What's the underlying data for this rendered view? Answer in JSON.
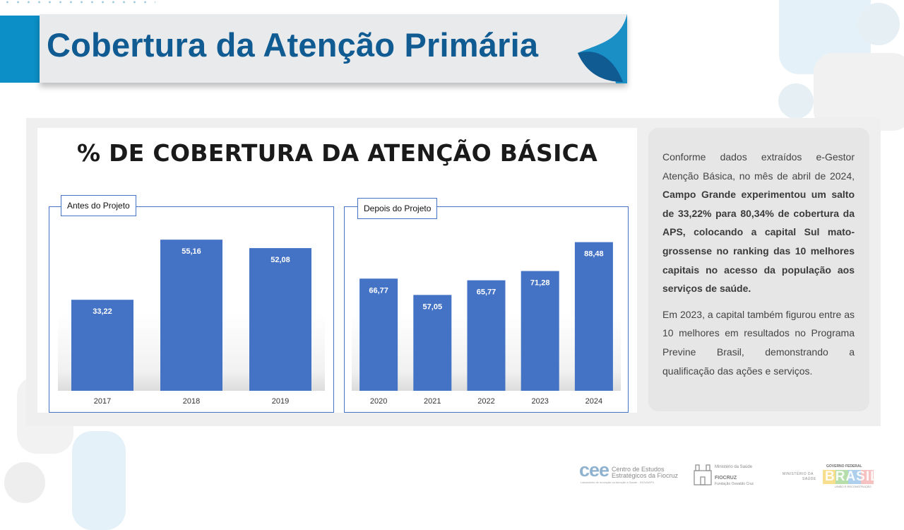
{
  "header": {
    "title": "Cobertura da Atenção Primária"
  },
  "chart_panel": {
    "title": "% DE COBERTURA DA ATENÇÃO BÁSICA"
  },
  "chart_data": [
    {
      "type": "bar",
      "group_label": "Antes do Projeto",
      "categories": [
        "2017",
        "2018",
        "2019"
      ],
      "values": [
        33.22,
        55.16,
        52.08
      ],
      "labels": [
        "33,22",
        "55,16",
        "52,08"
      ],
      "ylim": [
        0,
        65
      ]
    },
    {
      "type": "bar",
      "group_label": "Depois do Projeto",
      "categories": [
        "2020",
        "2021",
        "2022",
        "2023",
        "2024"
      ],
      "values": [
        66.77,
        57.05,
        65.77,
        71.28,
        88.48
      ],
      "labels": [
        "66,77",
        "57,05",
        "65,77",
        "71,28",
        "88,48"
      ],
      "ylim": [
        0,
        106
      ]
    }
  ],
  "side_text": {
    "p1_intro": "Conforme dados extraídos e-Gestor Atenção Básica, no mês de abril de 2024, ",
    "p1_bold": "Campo Grande experimentou um salto de 33,22% para 80,34% de cobertura da APS, colocando a capital Sul mato-grossense no ranking das 10 melhores capitais no acesso da população aos serviços de saúde.",
    "p2": "Em 2023, a capital também figurou entre as 10 melhores em resultados no Programa Previne Brasil, demonstrando a qualificação das ações e serviços."
  },
  "footer": {
    "cee_mark": "cee",
    "cee_line1": "Centro de Estudos",
    "cee_line2": "Estratégicos da Fiocruz",
    "cee_line3": "Laboratório de Inovação na Atenção à Saúde - INOVAAPS",
    "fiocruz_ministry": "Ministério da Saúde",
    "fiocruz_name": "FIOCRUZ",
    "fiocruz_sub": "Fundação Oswaldo Cruz",
    "ms_line1": "MINISTÉRIO DA",
    "ms_line2": "SAÚDE",
    "gov_label": "GOVERNO FEDERAL",
    "gov_brasil": "BRASIL",
    "gov_tagline": "UNIÃO E RECONSTRUÇÃO"
  },
  "colors": {
    "title_blue": "#0f5b92",
    "accent_blue": "#0b8fc6",
    "bar_blue": "#4472c4"
  }
}
